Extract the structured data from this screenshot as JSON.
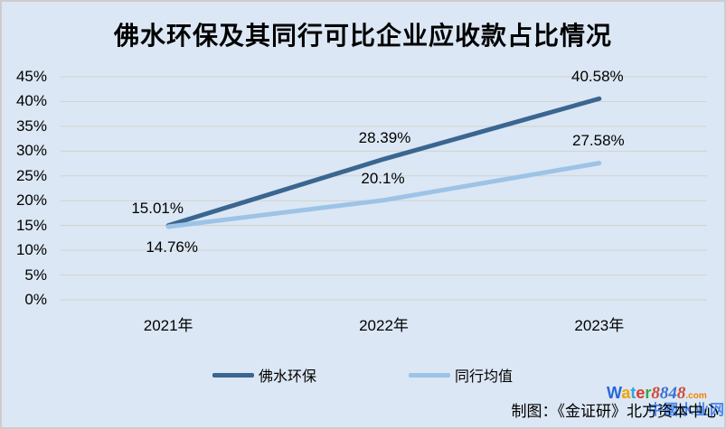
{
  "title": "佛水环保及其同行可比企业应收款占比情况",
  "credit": "制图：《金证研》北方资本中心",
  "legend": {
    "items": [
      {
        "label": "佛水环保",
        "color": "#3a6690"
      },
      {
        "label": "同行均值",
        "color": "#9dc3e6"
      }
    ]
  },
  "watermark": {
    "brand_letters": [
      {
        "ch": "W",
        "color": "#2766d8"
      },
      {
        "ch": "a",
        "color": "#f0a400"
      },
      {
        "ch": "t",
        "color": "#35a3dc"
      },
      {
        "ch": "e",
        "color": "#df382e"
      },
      {
        "ch": "r",
        "color": "#3ea33e"
      }
    ],
    "number_letters": [
      {
        "ch": "8",
        "color": "#cf4a35"
      },
      {
        "ch": "8",
        "color": "#3a6fd2"
      },
      {
        "ch": "4",
        "color": "#3a6fd2"
      },
      {
        "ch": "8",
        "color": "#cf4a35"
      }
    ],
    "suffix": ".com",
    "suffix_color": "#f08300",
    "cn_text": "中國水业网",
    "cn_color": "#4a86ec"
  },
  "chart_data": {
    "type": "line",
    "title": "佛水环保及其同行可比企业应收款占比情况",
    "categories": [
      "2021年",
      "2022年",
      "2023年"
    ],
    "series": [
      {
        "name": "佛水环保",
        "color": "#3a6690",
        "values": [
          15.01,
          28.39,
          40.58
        ],
        "point_labels": [
          "15.01%",
          "28.39%",
          "40.58%"
        ]
      },
      {
        "name": "同行均值",
        "color": "#9dc3e6",
        "values": [
          14.76,
          20.1,
          27.58
        ],
        "point_labels": [
          "14.76%",
          "20.1%",
          "27.58%"
        ]
      }
    ],
    "xlabel": "",
    "ylabel": "",
    "ylim": [
      0,
      45
    ],
    "ytick_step": 5,
    "ytick_labels_top_to_bottom": [
      "45%",
      "40%",
      "35%",
      "30%",
      "25%",
      "20%",
      "15%",
      "10%",
      "5%",
      "0%"
    ],
    "grid": true,
    "legend_position": "bottom"
  },
  "colors": {
    "background": "#dbe7f4",
    "gridline": "#d2d2d0",
    "border": "#d0cccb",
    "text": "#000000"
  }
}
